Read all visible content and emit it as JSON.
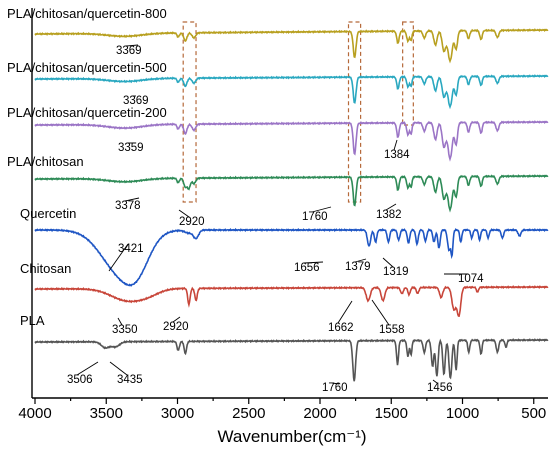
{
  "chart_data": {
    "type": "line",
    "title": "",
    "xlabel": "Wavenumber(cm⁻¹)",
    "ylabel": "",
    "xlim": [
      4000,
      400
    ],
    "x_reversed": true,
    "x_ticks": [
      4000,
      3500,
      3000,
      2500,
      2000,
      1500,
      1000,
      500
    ],
    "series": [
      {
        "name": "PLA/chitosan/quercetin-800",
        "color": "#b8a020",
        "peaks": [
          3369,
          2920,
          1760,
          1384
        ]
      },
      {
        "name": "PLA/chitosan/quercetin-500",
        "color": "#2aa8c0",
        "peaks": [
          3369,
          2920,
          1760,
          1384
        ]
      },
      {
        "name": "PLA/chitosan/quercetin-200",
        "color": "#9b75c6",
        "peaks": [
          3359,
          2920,
          1760,
          1384
        ]
      },
      {
        "name": "PLA/chitosan",
        "color": "#2e8b57",
        "peaks": [
          3378,
          2920,
          1760,
          1382
        ]
      },
      {
        "name": "Quercetin",
        "color": "#1f56c4",
        "peaks": [
          3421,
          1656,
          1379,
          1319,
          1074
        ]
      },
      {
        "name": "Chitosan",
        "color": "#c8463a",
        "peaks": [
          3350,
          2920,
          1662,
          1558
        ]
      },
      {
        "name": "PLA",
        "color": "#555555",
        "peaks": [
          3506,
          3435,
          1760,
          1456
        ]
      }
    ],
    "annotations": [
      {
        "text": "3369",
        "x": 3369,
        "series": 0
      },
      {
        "text": "3369",
        "x": 3369,
        "series": 1
      },
      {
        "text": "3359",
        "x": 3359,
        "series": 2
      },
      {
        "text": "1384",
        "x": 1384,
        "series": 2
      },
      {
        "text": "3378",
        "x": 3378,
        "series": 3
      },
      {
        "text": "2920",
        "x": 2920,
        "series": 3
      },
      {
        "text": "1760",
        "x": 1760,
        "series": 3
      },
      {
        "text": "1382",
        "x": 1382,
        "series": 3
      },
      {
        "text": "3421",
        "x": 3421,
        "series": 4
      },
      {
        "text": "1656",
        "x": 1656,
        "series": 4
      },
      {
        "text": "1379",
        "x": 1379,
        "series": 4
      },
      {
        "text": "1319",
        "x": 1319,
        "series": 4
      },
      {
        "text": "1074",
        "x": 1074,
        "series": 4
      },
      {
        "text": "3350",
        "x": 3350,
        "series": 5
      },
      {
        "text": "2920",
        "x": 2920,
        "series": 5
      },
      {
        "text": "1662",
        "x": 1662,
        "series": 5
      },
      {
        "text": "1558",
        "x": 1558,
        "series": 5
      },
      {
        "text": "3506",
        "x": 3506,
        "series": 6
      },
      {
        "text": "3435",
        "x": 3435,
        "series": 6
      },
      {
        "text": "1760",
        "x": 1760,
        "series": 6
      },
      {
        "text": "1456",
        "x": 1456,
        "series": 6
      }
    ],
    "highlight_bands": [
      {
        "x_from": 2960,
        "x_to": 2870
      },
      {
        "x_from": 1800,
        "x_to": 1715
      },
      {
        "x_from": 1420,
        "x_to": 1345
      }
    ],
    "grid": false,
    "legend": "none"
  }
}
